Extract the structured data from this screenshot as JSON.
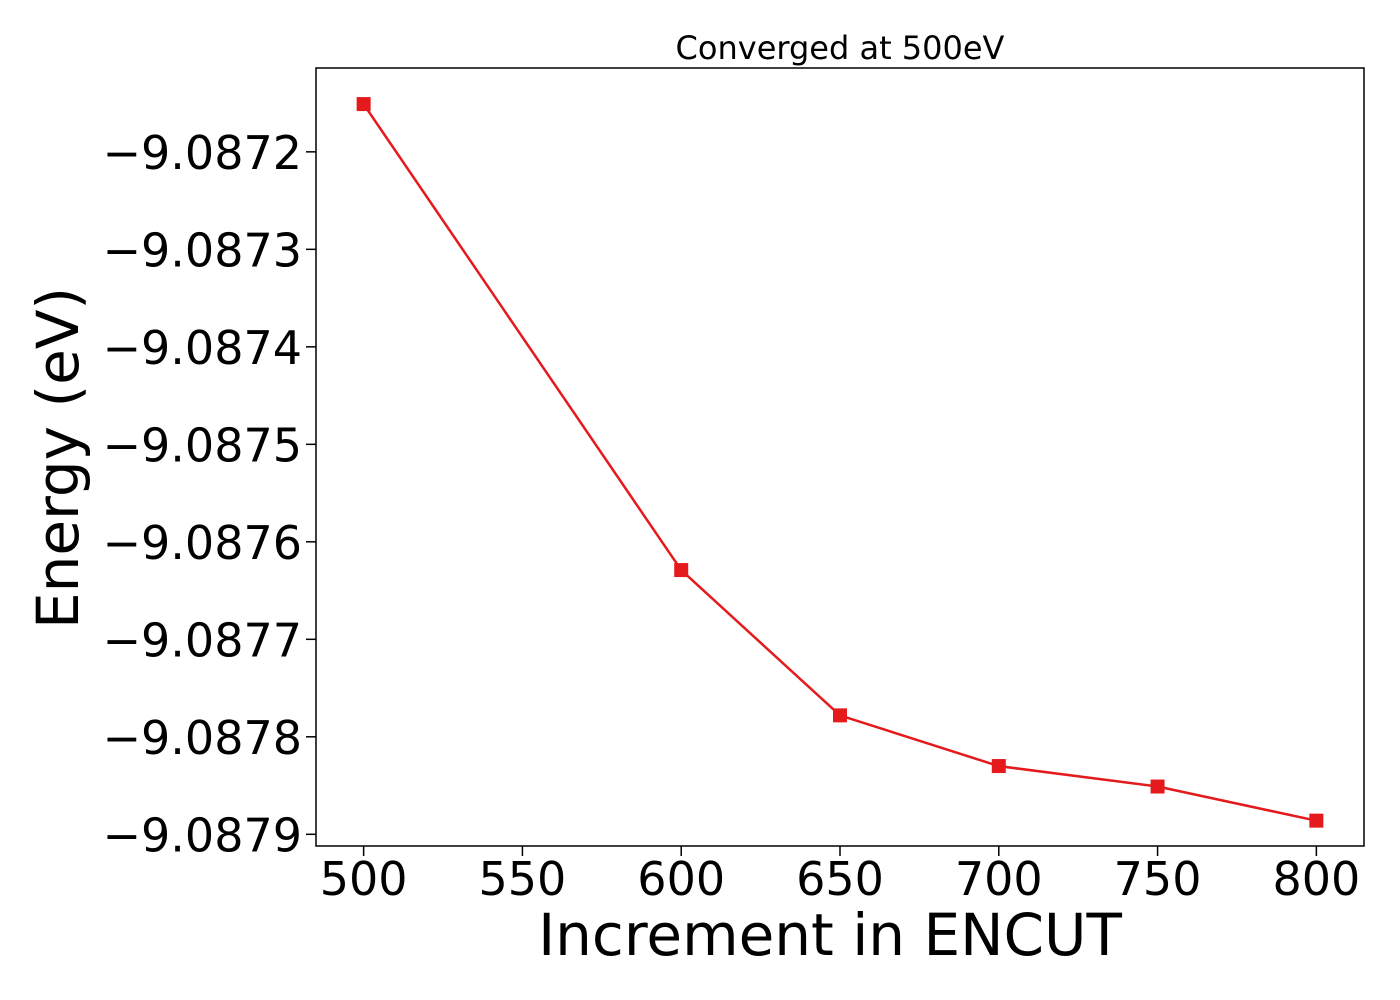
{
  "chart_data": {
    "type": "line",
    "title": "Converged at 500eV",
    "xlabel": "Increment in ENCUT",
    "ylabel": "Energy (eV)",
    "x": [
      500,
      600,
      650,
      700,
      750,
      800
    ],
    "series": [
      {
        "values": [
          -9.087151,
          -9.087629,
          -9.087778,
          -9.08783,
          -9.087851,
          -9.087886
        ],
        "color": "#e41a1c",
        "marker": "square"
      }
    ],
    "xticks": [
      500,
      550,
      600,
      650,
      700,
      750,
      800
    ],
    "xtick_labels": [
      "500",
      "550",
      "600",
      "650",
      "700",
      "750",
      "800"
    ],
    "yticks": [
      -9.0872,
      -9.0873,
      -9.0874,
      -9.0875,
      -9.0876,
      -9.0877,
      -9.0878,
      -9.0879
    ],
    "ytick_labels": [
      "−9.0872",
      "−9.0873",
      "−9.0874",
      "−9.0875",
      "−9.0876",
      "−9.0877",
      "−9.0878",
      "−9.0879"
    ],
    "xlim": [
      485,
      815
    ],
    "ylim": [
      -9.087912,
      -9.087114
    ],
    "grid": false,
    "legend": "none"
  }
}
